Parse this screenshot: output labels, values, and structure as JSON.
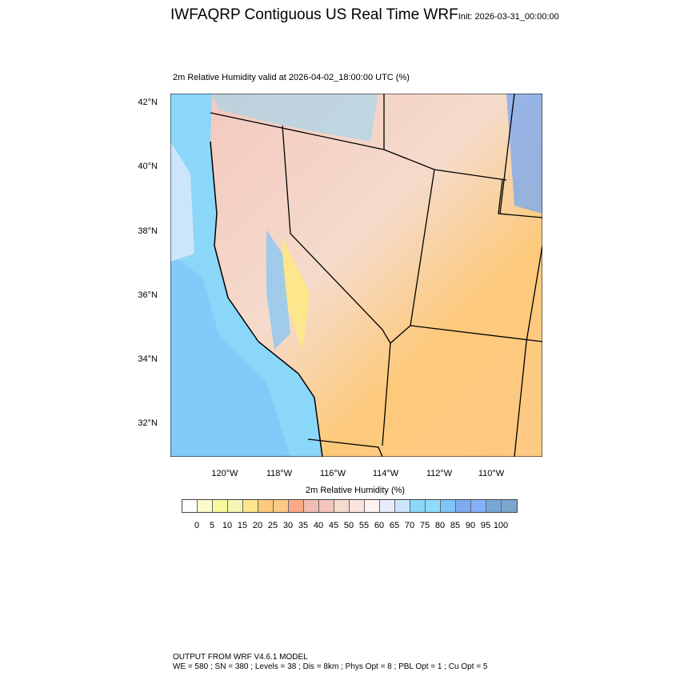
{
  "header": {
    "title": "IWFAQRP Contiguous US Real Time WRF",
    "init": "Init: 2026-03-31_00:00:00"
  },
  "plot": {
    "subtitle": "2m Relative Humidity valid at 2026-04-02_18:00:00 UTC   (%)",
    "lat_ticks": [
      "42°N",
      "40°N",
      "38°N",
      "36°N",
      "34°N",
      "32°N"
    ],
    "lon_ticks": [
      "120°W",
      "118°W",
      "116°W",
      "114°W",
      "112°W",
      "110°W"
    ]
  },
  "colorbar": {
    "title": "2m Relative Humidity  (%)",
    "labels": [
      "0",
      "5",
      "10",
      "15",
      "20",
      "25",
      "30",
      "35",
      "40",
      "45",
      "50",
      "55",
      "60",
      "65",
      "70",
      "75",
      "80",
      "85",
      "90",
      "95",
      "100"
    ],
    "colors": [
      "#ffffff",
      "#fbfbcc",
      "#f8f89c",
      "#f3f5b2",
      "#fde68c",
      "#fdca7c",
      "#fdc984",
      "#fca786",
      "#f3bdb1",
      "#f3c6bd",
      "#f5dbcb",
      "#fae3dc",
      "#fdf1f1",
      "#e6ecfc",
      "#cce5fb",
      "#8ad7f9",
      "#8edbfb",
      "#7ec5f9",
      "#7eaaef",
      "#82b0f9",
      "#78a6d9",
      "#7ca6cb"
    ]
  },
  "footer": {
    "line1": "OUTPUT FROM WRF V4.6.1 MODEL",
    "line2": "WE = 580 ; SN = 380 ; Levels = 38 ; Dis = 8km ; Phys Opt = 8 ; PBL Opt = 1 ; Cu Opt = 5"
  }
}
